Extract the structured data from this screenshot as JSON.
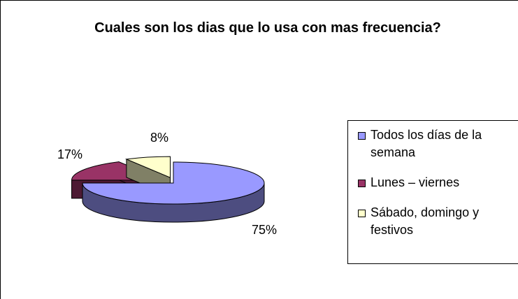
{
  "chart_data": {
    "type": "pie",
    "title": "Cuales son los dias que lo usa con mas frecuencia?",
    "categories": [
      "Todos los días de la semana",
      "Lunes – viernes",
      "Sábado, domingo y festivos"
    ],
    "values": [
      75,
      17,
      8
    ],
    "value_labels": [
      "75%",
      "17%",
      "8%"
    ],
    "colors": [
      "#9999ff",
      "#993366",
      "#ffffcc"
    ],
    "legend": "right"
  }
}
